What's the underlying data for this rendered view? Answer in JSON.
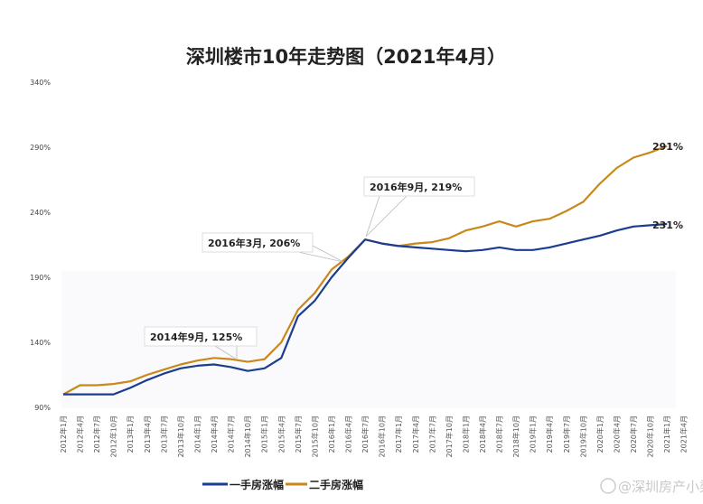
{
  "chart_data": {
    "type": "line",
    "title": "深圳楼市10年走势图（2021年4月）",
    "xlabel": "",
    "ylabel": "",
    "ylim": [
      90,
      340
    ],
    "yticks": [
      "90%",
      "140%",
      "190%",
      "240%",
      "290%",
      "340%"
    ],
    "ytick_values": [
      90,
      140,
      190,
      240,
      290,
      340
    ],
    "grid": false,
    "legend_position": "bottom",
    "categories": [
      "2012年1月",
      "2012年4月",
      "2012年7月",
      "2012年10月",
      "2013年1月",
      "2013年4月",
      "2013年7月",
      "2013年10月",
      "2014年1月",
      "2014年4月",
      "2014年7月",
      "2014年10月",
      "2015年1月",
      "2015年4月",
      "2015年7月",
      "2015年10月",
      "2016年1月",
      "2016年4月",
      "2016年7月",
      "2016年10月",
      "2017年1月",
      "2017年4月",
      "2017年7月",
      "2017年10月",
      "2018年1月",
      "2018年4月",
      "2018年7月",
      "2018年10月",
      "2019年1月",
      "2019年4月",
      "2019年7月",
      "2019年10月",
      "2020年1月",
      "2020年4月",
      "2020年7月",
      "2020年10月",
      "2021年1月",
      "2021年4月"
    ],
    "series": [
      {
        "name": "一手房涨幅",
        "color": "#1a3d8f",
        "values": [
          100,
          100,
          100,
          100,
          105,
          111,
          116,
          120,
          122,
          123,
          121,
          118,
          120,
          128,
          160,
          172,
          190,
          205,
          219,
          216,
          214,
          213,
          212,
          211,
          210,
          211,
          213,
          211,
          211,
          213,
          216,
          219,
          222,
          226,
          229,
          230,
          231,
          null
        ]
      },
      {
        "name": "二手房涨幅",
        "color": "#c8881a",
        "values": [
          100,
          107,
          107,
          108,
          110,
          115,
          119,
          123,
          126,
          128,
          127,
          125,
          127,
          140,
          165,
          178,
          196,
          206,
          219,
          216,
          214,
          216,
          217,
          220,
          226,
          229,
          233,
          229,
          233,
          235,
          241,
          248,
          262,
          274,
          282,
          286,
          291,
          null
        ]
      }
    ],
    "annotations": [
      {
        "text": "2014年9月, 125%"
      },
      {
        "text": "2016年3月, 206%"
      },
      {
        "text": "2016年9月, 219%"
      }
    ],
    "end_labels": [
      "231%",
      "291%"
    ]
  },
  "watermark": "@深圳房产小梁"
}
